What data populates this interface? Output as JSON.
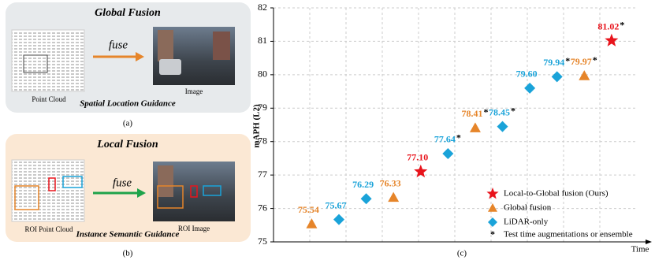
{
  "panels": [
    {
      "title": "Global Fusion",
      "left_label": "Point Cloud",
      "arrow_label": "fuse",
      "right_label": "Image",
      "subtitle": "Spatial Location Guidance",
      "caption": "(a)"
    },
    {
      "title": "Local Fusion",
      "left_label": "ROI Point Cloud",
      "arrow_label": "fuse",
      "right_label": "ROI Image",
      "subtitle": "Instance Semantic Guidance",
      "caption": "(b)"
    }
  ],
  "chart_data": {
    "type": "scatter",
    "caption": "(c)",
    "ylabel": "mAPH (L2)",
    "xlabel": "Time",
    "xlim": [
      -0.4,
      12.9
    ],
    "ylim": [
      75,
      82
    ],
    "yticks": [
      75,
      76,
      77,
      78,
      79,
      80,
      81,
      82
    ],
    "grid": true,
    "legend": "lower right",
    "note_marker": "*",
    "note_label": "Test time augmentations or ensemble",
    "series": [
      {
        "name": "Local-to-Global fusion (Ours)",
        "color": "#e8141c",
        "marker": "star",
        "x": [
          5,
          12
        ],
        "values": [
          77.1,
          81.02
        ],
        "value_labels": [
          "77.10",
          "81.02"
        ],
        "ensemble": [
          false,
          true
        ]
      },
      {
        "name": "Global fusion",
        "color": "#e6852a",
        "marker": "triangle",
        "x": [
          1,
          4,
          7,
          11
        ],
        "values": [
          75.54,
          76.33,
          78.41,
          79.97
        ],
        "value_labels": [
          "75.54",
          "76.33",
          "78.41",
          "79.97"
        ],
        "ensemble": [
          false,
          false,
          true,
          true
        ]
      },
      {
        "name": "LiDAR-only",
        "color": "#1aa3d9",
        "marker": "diamond",
        "x": [
          2,
          3,
          6,
          8,
          9,
          10
        ],
        "values": [
          75.67,
          76.29,
          77.64,
          78.45,
          79.6,
          79.94
        ],
        "value_labels": [
          "75.67",
          "76.29",
          "77.64",
          "78.45",
          "79.60",
          "79.94"
        ],
        "ensemble": [
          false,
          false,
          true,
          true,
          false,
          true
        ]
      }
    ]
  }
}
